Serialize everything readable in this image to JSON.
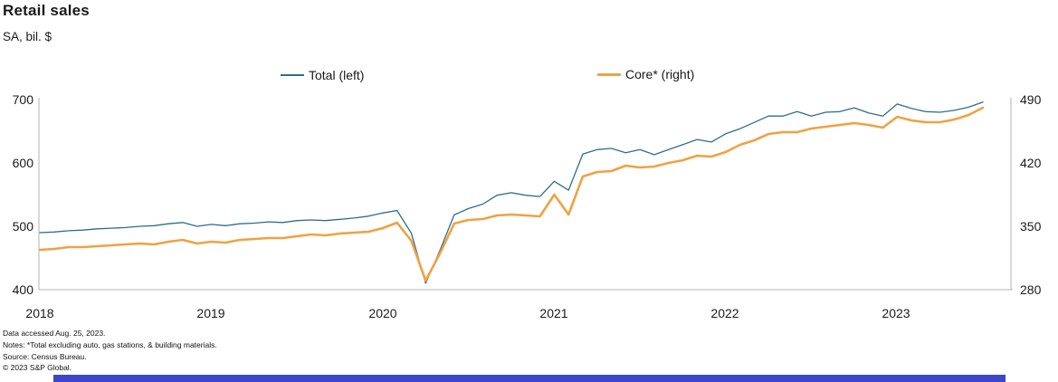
{
  "header": {
    "title": "Retail sales",
    "subtitle": "SA, bil. $"
  },
  "legend": [
    {
      "label": "Total (left)",
      "color": "#2e6d8c"
    },
    {
      "label": "Core* (right)",
      "color": "#efa243"
    }
  ],
  "footnotes": {
    "line1": "Data accessed Aug. 25, 2023.",
    "line2": "Notes: *Total excluding auto, gas stations, & building materials.",
    "line3": "Source: Census Bureau.",
    "line4": "© 2023 S&P Global."
  },
  "branding": {
    "bar_color": "#3c46c8"
  },
  "chart_data": {
    "type": "line",
    "title": "Retail sales",
    "subtitle": "SA, bil. $",
    "x_unit": "month",
    "x_start": "2018-01",
    "x_end": "2023-07",
    "x_tick_labels": [
      "2018",
      "2019",
      "2020",
      "2021",
      "2022",
      "2023"
    ],
    "grid": false,
    "legend_position": "top",
    "left_axis": {
      "ticks": [
        700,
        600,
        500,
        400
      ],
      "range": [
        400,
        700
      ]
    },
    "right_axis": {
      "ticks": [
        490,
        420,
        350,
        280
      ],
      "range": [
        280,
        490
      ]
    },
    "series": [
      {
        "name": "Total (left)",
        "axis": "left",
        "color": "#2e6d8c",
        "width": 1.3,
        "values": [
          490,
          491,
          493,
          494,
          496,
          497,
          498,
          500,
          501,
          504,
          506,
          500,
          503,
          501,
          504,
          505,
          507,
          506,
          509,
          510,
          509,
          511,
          513,
          516,
          521,
          525,
          489,
          410,
          462,
          518,
          528,
          535,
          549,
          553,
          549,
          547,
          571,
          557,
          614,
          621,
          623,
          616,
          621,
          613,
          621,
          629,
          637,
          633,
          646,
          654,
          664,
          674,
          674,
          681,
          674,
          680,
          681,
          687,
          679,
          674,
          693,
          686,
          681,
          680,
          683,
          688,
          696
        ]
      },
      {
        "name": "Core* (right)",
        "axis": "right",
        "color": "#efa243",
        "width": 2.6,
        "values": [
          324,
          325,
          327,
          327,
          328,
          329,
          330,
          331,
          330,
          333,
          335,
          331,
          333,
          332,
          335,
          336,
          337,
          337,
          339,
          341,
          340,
          342,
          343,
          344,
          348,
          354,
          334,
          290,
          320,
          353,
          357,
          358,
          362,
          363,
          362,
          361,
          385,
          363,
          405,
          410,
          411,
          417,
          415,
          416,
          420,
          423,
          428,
          427,
          432,
          440,
          445,
          452,
          454,
          454,
          458,
          460,
          462,
          464,
          462,
          459,
          471,
          467,
          465,
          465,
          468,
          473,
          481
        ]
      }
    ]
  }
}
